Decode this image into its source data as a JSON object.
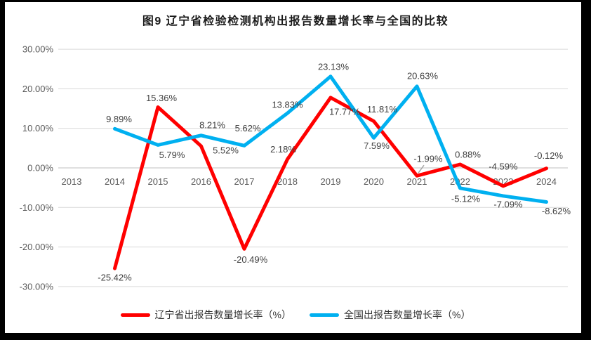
{
  "title": "图9  辽宁省检验检测机构出报告数量增长率与全国的比较",
  "legend": {
    "items": [
      {
        "label": "辽宁省出报告数量增长率（%）",
        "color": "#FF0000"
      },
      {
        "label": "全国出报告数量增长率（%）",
        "color": "#00B0F0"
      }
    ]
  },
  "colors": {
    "liaoning_line": "#FF0000",
    "national_line": "#00B0F0",
    "gridline": "#D9D9D9",
    "axis_line": "#BFBFBF",
    "tick_text": "#595959",
    "label_text": "#404040",
    "leader_line": "#A6A6A6",
    "frame": "#000000"
  },
  "chart_data": {
    "type": "line",
    "title": "图9  辽宁省检验检测机构出报告数量增长率与全国的比较",
    "categories": [
      "2013",
      "2014",
      "2015",
      "2016",
      "2017",
      "2018",
      "2019",
      "2020",
      "2021",
      "2022",
      "2023",
      "2024"
    ],
    "xlabel": "",
    "ylabel": "",
    "ylim": [
      -30,
      30
    ],
    "yticks": [
      30,
      20,
      10,
      0,
      -10,
      -20,
      -30
    ],
    "ytick_labels": [
      "30.00%",
      "20.00%",
      "10.00%",
      "0.00%",
      "-10.00%",
      "-20.00%",
      "-30.00%"
    ],
    "grid": true,
    "legend_position": "bottom",
    "series": [
      {
        "name": "辽宁省出报告数量增长率（%）",
        "color": "#FF0000",
        "values": [
          null,
          -25.42,
          15.36,
          5.52,
          -20.49,
          2.18,
          17.77,
          11.81,
          -1.99,
          0.88,
          -4.59,
          -0.12
        ],
        "labels": [
          "",
          "-25.42%",
          "15.36%",
          "5.52%",
          "-20.49%",
          "2.18%",
          "17.77%",
          "11.81%",
          "-1.99%",
          "0.88%",
          "-4.59%",
          "-0.12%"
        ],
        "label_offsets": [
          [
            0,
            0
          ],
          [
            0,
            13
          ],
          [
            5,
            -13
          ],
          [
            35,
            6
          ],
          [
            9,
            15
          ],
          [
            -6,
            -14
          ],
          [
            20,
            20
          ],
          [
            12,
            -17
          ],
          [
            16,
            -24
          ],
          [
            11,
            -14
          ],
          [
            0,
            -28
          ],
          [
            3,
            -18
          ]
        ]
      },
      {
        "name": "全国出报告数量增长率（%）",
        "color": "#00B0F0",
        "values": [
          null,
          9.89,
          5.79,
          8.21,
          5.62,
          13.83,
          23.13,
          7.59,
          20.63,
          -5.12,
          -7.09,
          -8.62
        ],
        "labels": [
          "",
          "9.89%",
          "5.79%",
          "8.21%",
          "5.62%",
          "13.83%",
          "23.13%",
          "7.59%",
          "20.63%",
          "-5.12%",
          "-7.09%",
          "-8.62%"
        ],
        "label_offsets": [
          [
            0,
            0
          ],
          [
            6,
            -14
          ],
          [
            20,
            14
          ],
          [
            16,
            -15
          ],
          [
            5,
            -25
          ],
          [
            0,
            -12
          ],
          [
            4,
            -14
          ],
          [
            4,
            11
          ],
          [
            8,
            -15
          ],
          [
            8,
            15
          ],
          [
            7,
            12
          ],
          [
            14,
            13
          ]
        ]
      }
    ],
    "leader_lines": [
      {
        "series": 0,
        "index": 8
      }
    ]
  }
}
